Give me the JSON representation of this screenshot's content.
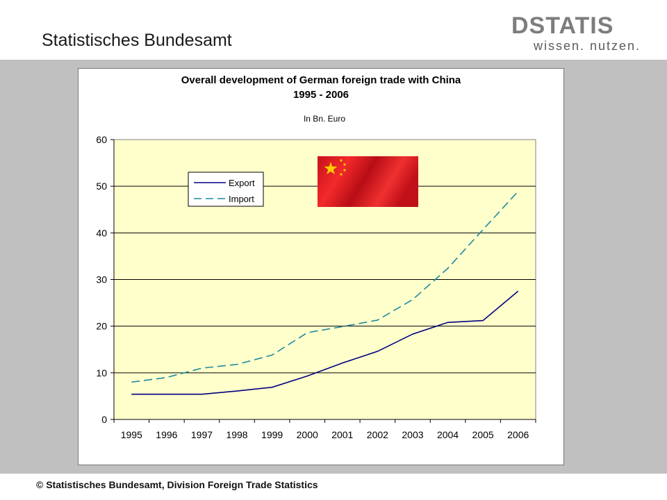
{
  "header": {
    "title": "Statistisches Bundesamt"
  },
  "logo": {
    "word": "DSTATIS",
    "tagline": "wissen. nutzen."
  },
  "footer": {
    "text": "© Statistisches Bundesamt, Division Foreign Trade Statistics"
  },
  "colors": {
    "plot_bg": "#ffffcc",
    "export_line": "#000080",
    "import_line": "#1c8aa0",
    "band": "#c0c0c0"
  },
  "chart_data": {
    "type": "line",
    "title": "Overall development of German foreign trade with China",
    "title_line2": "1995 - 2006",
    "subtitle": "In Bn. Euro",
    "categories": [
      "1995",
      "1996",
      "1997",
      "1998",
      "1999",
      "2000",
      "2001",
      "2002",
      "2003",
      "2004",
      "2005",
      "2006"
    ],
    "series": [
      {
        "name": "Export",
        "style": "solid",
        "values": [
          5.4,
          5.4,
          5.4,
          6.1,
          6.9,
          9.3,
          12.1,
          14.6,
          18.3,
          20.8,
          21.2,
          27.5
        ]
      },
      {
        "name": "Import",
        "style": "dashed",
        "values": [
          8.0,
          9.0,
          11.0,
          11.8,
          13.8,
          18.6,
          19.9,
          21.3,
          25.7,
          32.4,
          40.7,
          48.9
        ]
      }
    ],
    "ylim": [
      0,
      60
    ],
    "yticks": [
      0,
      10,
      20,
      30,
      40,
      50,
      60
    ],
    "grid": true,
    "legend_position": "upper-left inside plot",
    "decoration": "chinese-flag image in upper plot area"
  }
}
